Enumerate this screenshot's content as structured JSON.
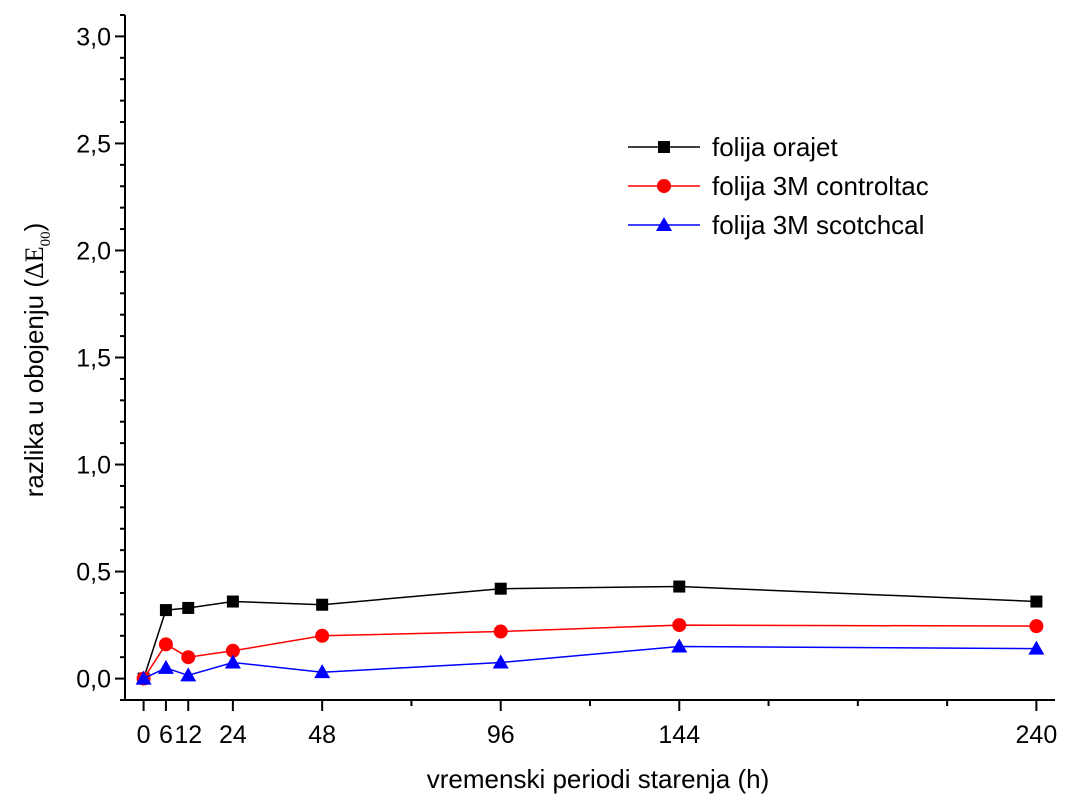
{
  "chart_data": {
    "type": "line",
    "title": "",
    "xlabel": "vremenski periodi starenja (h)",
    "ylabel_text": "razlika u obojenju (",
    "ylabel_symbol": "ΔE",
    "ylabel_sub": "00",
    "ylabel_close": ")",
    "x": [
      0,
      6,
      12,
      24,
      48,
      96,
      144,
      240
    ],
    "x_tick_labels": [
      "0",
      "6",
      "12",
      "24",
      "48",
      "96",
      "144",
      "240"
    ],
    "xlim": [
      -5,
      245
    ],
    "ylim": [
      -0.1,
      3.1
    ],
    "y_ticks": [
      0.0,
      0.5,
      1.0,
      1.5,
      2.0,
      2.5,
      3.0
    ],
    "y_tick_labels": [
      "0,0",
      "0,5",
      "1,0",
      "1,5",
      "2,0",
      "2,5",
      "3,0"
    ],
    "grid": false,
    "legend_position": "top-right",
    "series": [
      {
        "name": "folija orajet",
        "color": "#000000",
        "marker": "square",
        "values": [
          0.0,
          0.32,
          0.33,
          0.36,
          0.345,
          0.42,
          0.43,
          0.36
        ]
      },
      {
        "name": "folija 3M controltac",
        "color": "#ff0000",
        "marker": "circle",
        "values": [
          0.0,
          0.16,
          0.1,
          0.13,
          0.2,
          0.22,
          0.25,
          0.245
        ]
      },
      {
        "name": "folija 3M scotchcal",
        "color": "#0000ff",
        "marker": "triangle",
        "values": [
          0.0,
          0.05,
          0.015,
          0.075,
          0.03,
          0.075,
          0.15,
          0.14
        ]
      }
    ]
  }
}
